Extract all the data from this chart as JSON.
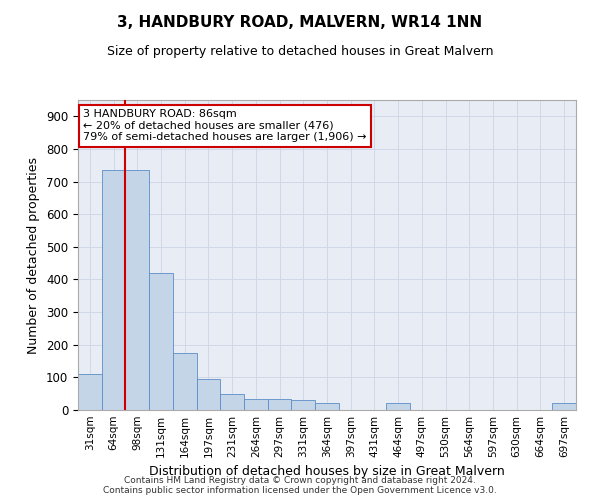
{
  "title": "3, HANDBURY ROAD, MALVERN, WR14 1NN",
  "subtitle": "Size of property relative to detached houses in Great Malvern",
  "xlabel": "Distribution of detached houses by size in Great Malvern",
  "ylabel": "Number of detached properties",
  "bar_labels": [
    "31sqm",
    "64sqm",
    "98sqm",
    "131sqm",
    "164sqm",
    "197sqm",
    "231sqm",
    "264sqm",
    "297sqm",
    "331sqm",
    "364sqm",
    "397sqm",
    "431sqm",
    "464sqm",
    "497sqm",
    "530sqm",
    "564sqm",
    "597sqm",
    "630sqm",
    "664sqm",
    "697sqm"
  ],
  "bar_values": [
    110,
    735,
    735,
    420,
    175,
    95,
    50,
    35,
    35,
    30,
    20,
    0,
    0,
    20,
    0,
    0,
    0,
    0,
    0,
    0,
    20
  ],
  "bar_color": "#c5d5e8",
  "bar_edge_color": "#5b8dc8",
  "grid_color": "#d0d8e8",
  "bg_color": "#e8edf5",
  "vline_x": 1.48,
  "vline_color": "#cc0000",
  "annotation_text": "3 HANDBURY ROAD: 86sqm\n← 20% of detached houses are smaller (476)\n79% of semi-detached houses are larger (1,906) →",
  "annotation_box_color": "#cc0000",
  "ylim": [
    0,
    950
  ],
  "yticks": [
    0,
    100,
    200,
    300,
    400,
    500,
    600,
    700,
    800,
    900
  ],
  "footer_line1": "Contains HM Land Registry data © Crown copyright and database right 2024.",
  "footer_line2": "Contains public sector information licensed under the Open Government Licence v3.0."
}
